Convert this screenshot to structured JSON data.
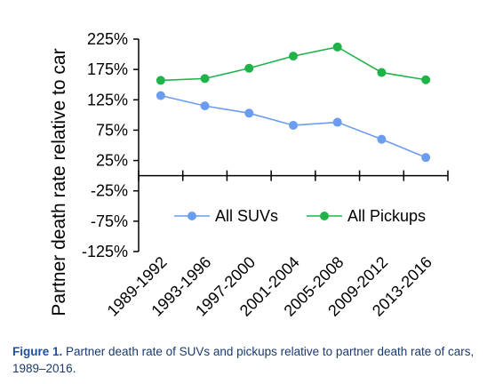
{
  "chart_data": {
    "type": "line",
    "categories": [
      "1989-1992",
      "1993-1996",
      "1997-2000",
      "2001-2004",
      "2005-2008",
      "2009-2012",
      "2013-2016"
    ],
    "series": [
      {
        "name": "All SUVs",
        "color": "#6b9cf0",
        "values": [
          132,
          115,
          103,
          83,
          88,
          60,
          30
        ]
      },
      {
        "name": "All Pickups",
        "color": "#1fb34a",
        "values": [
          157,
          160,
          177,
          197,
          212,
          170,
          158
        ]
      }
    ],
    "ylabel": "Partner death rate relative to car",
    "xlabel": "",
    "ylim": [
      -125,
      225
    ],
    "yticks": [
      225,
      175,
      125,
      75,
      25,
      -25,
      -75,
      -125
    ],
    "ytick_labels": [
      "225%",
      "175%",
      "125%",
      "75%",
      "25%",
      "-25%",
      "-75%",
      "-125%"
    ],
    "grid": false,
    "legend_position": "lower-center"
  },
  "caption": {
    "lead": "Figure 1.",
    "text": " Partner death rate of SUVs and pickups relative to partner death rate of cars, 1989–2016."
  }
}
